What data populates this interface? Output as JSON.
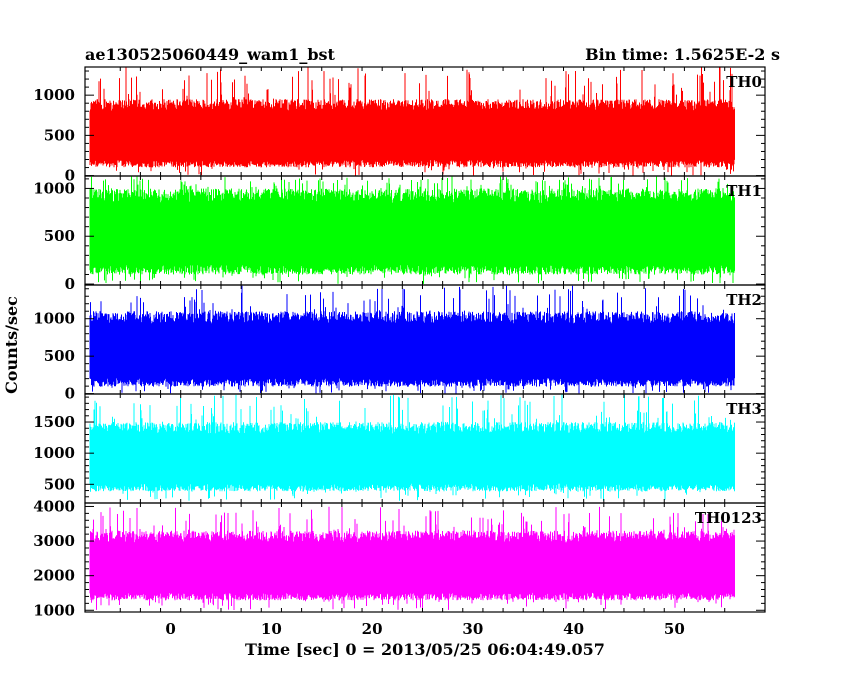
{
  "chart_data": {
    "type": "line",
    "title": "ae130525060449_wam1_bst",
    "subtitle": "Bin time: 1.5625E-2 s",
    "xlabel": "Time [sec] 0 = 2013/05/25 06:04:49.057",
    "ylabel": "Counts/sec",
    "xlim": [
      -8.5,
      59
    ],
    "data_range": [
      -8,
      56
    ],
    "x_ticks": [
      0,
      10,
      20,
      30,
      40,
      50
    ],
    "x_tick_labels": [
      "0",
      "10",
      "20",
      "30",
      "40",
      "50"
    ],
    "grid": false,
    "panels": [
      {
        "name": "TH0",
        "color": "#ff0000",
        "ylim": [
          -5,
          1350
        ],
        "ticks": [
          0,
          500,
          1000
        ],
        "tick_labels": [
          "0",
          "500",
          "1000"
        ],
        "typ_low": 150,
        "typ_high": 950,
        "min": 0,
        "max": 1350
      },
      {
        "name": "TH1",
        "color": "#00ff00",
        "ylim": [
          -10,
          1130
        ],
        "ticks": [
          0,
          500,
          1000
        ],
        "tick_labels": [
          "0",
          "500",
          "1000"
        ],
        "typ_low": 150,
        "typ_high": 1000,
        "min": 0,
        "max": 1130
      },
      {
        "name": "TH2",
        "color": "#0000ff",
        "ylim": [
          -5,
          1450
        ],
        "ticks": [
          0,
          500,
          1000
        ],
        "tick_labels": [
          "0",
          "500",
          "1000"
        ],
        "typ_low": 150,
        "typ_high": 1100,
        "min": 0,
        "max": 1450
      },
      {
        "name": "TH3",
        "color": "#00ffff",
        "ylim": [
          200,
          1950
        ],
        "ticks": [
          500,
          1000,
          1500
        ],
        "tick_labels": [
          "500",
          "1000",
          "1500"
        ],
        "typ_low": 450,
        "typ_high": 1500,
        "min": 230,
        "max": 1950
      },
      {
        "name": "TH0123",
        "color": "#ff00ff",
        "ylim": [
          950,
          4100
        ],
        "ticks": [
          1000,
          2000,
          3000,
          4000
        ],
        "tick_labels": [
          "1000",
          "2000",
          "3000",
          "4000"
        ],
        "typ_low": 1400,
        "typ_high": 3300,
        "min": 1000,
        "max": 4000
      }
    ]
  }
}
